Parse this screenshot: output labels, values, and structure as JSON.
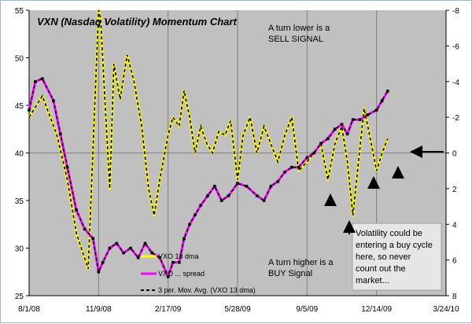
{
  "chart_data": {
    "type": "line",
    "title": "VXN (Nasdaq Volatility) Momentum Chart",
    "x_tick_labels": [
      "8/1/08",
      "11/9/08",
      "2/17/09",
      "5/28/09",
      "9/5/09",
      "12/14/09",
      "3/24/10"
    ],
    "x_range": [
      "2008-08-01",
      "2010-03-24"
    ],
    "left_axis": {
      "range": [
        25,
        55
      ],
      "ticks": [
        25,
        30,
        35,
        40,
        45,
        50,
        55
      ]
    },
    "right_axis": {
      "range": [
        8,
        -8
      ],
      "inverted": true,
      "ticks": [
        8,
        6,
        4,
        2,
        0,
        -2,
        -4,
        -6,
        -8
      ]
    },
    "grid": "vertical lines only",
    "legend": {
      "position": "lower-middle",
      "entries": [
        {
          "label": "VXO 13 dma",
          "color": "#ffff00"
        },
        {
          "label": "VXO ... spread",
          "color": "#ff00ff"
        },
        {
          "label": "3 per. Mov. Avg. (VXO 13 dma)",
          "color": "#000000",
          "style": "dashed"
        }
      ]
    },
    "annotations": {
      "sell_signal": [
        "A turn lower is a",
        "SELL SIGNAL"
      ],
      "buy_signal": [
        "A turn higher is a",
        "BUY Signal"
      ],
      "note_box": [
        "Volatility could be",
        "entering a buy cycle",
        "here, so never",
        "count out the",
        "market..."
      ]
    },
    "series": [
      {
        "name": "3 per. Mov. Avg. (VXO 13 dma)",
        "axis": "right",
        "color": "#ffff00",
        "overlay": "black dashed",
        "x": [
          "2008-08-01",
          "2008-08-20",
          "2008-09-10",
          "2008-09-25",
          "2008-10-08",
          "2008-10-25",
          "2008-11-09",
          "2008-11-12",
          "2008-11-18",
          "2008-11-25",
          "2008-12-01",
          "2008-12-10",
          "2008-12-20",
          "2008-12-30",
          "2009-01-10",
          "2009-01-20",
          "2009-01-28",
          "2009-02-05",
          "2009-02-17",
          "2009-02-24",
          "2009-03-05",
          "2009-03-12",
          "2009-03-20",
          "2009-03-28",
          "2009-04-05",
          "2009-04-14",
          "2009-04-22",
          "2009-05-01",
          "2009-05-10",
          "2009-05-18",
          "2009-05-28",
          "2009-06-05",
          "2009-06-15",
          "2009-06-25",
          "2009-07-05",
          "2009-07-15",
          "2009-07-25",
          "2009-08-04",
          "2009-08-14",
          "2009-08-24",
          "2009-09-05",
          "2009-09-15",
          "2009-09-25",
          "2009-10-05",
          "2009-10-15",
          "2009-10-25",
          "2009-11-02",
          "2009-11-10",
          "2009-11-18",
          "2009-11-26",
          "2009-12-04",
          "2009-12-14",
          "2009-12-22",
          "2009-12-30"
        ],
        "y": [
          -2.0,
          -3.2,
          -1.0,
          1.5,
          4.5,
          6.5,
          -8.0,
          -7.5,
          -3.0,
          2.0,
          -5.0,
          -3.0,
          -5.5,
          -4.0,
          -1.5,
          2.0,
          3.5,
          1.5,
          -1.0,
          -2.0,
          -1.5,
          -3.5,
          -2.0,
          0.0,
          -1.5,
          -0.5,
          0.0,
          -1.2,
          -1.0,
          -1.8,
          1.5,
          -1.0,
          -2.0,
          0.0,
          -1.5,
          -0.5,
          0.5,
          -1.0,
          -2.0,
          1.0,
          0.5,
          0.0,
          -0.5,
          1.5,
          -0.5,
          -1.5,
          0.5,
          3.5,
          0.5,
          -2.5,
          -1.0,
          1.0,
          0.0,
          -0.8
        ]
      },
      {
        "name": "VXO ... spread",
        "axis": "left",
        "color": "#ff00ff",
        "overlay": "black dashed",
        "x": [
          "2008-08-01",
          "2008-08-10",
          "2008-08-20",
          "2008-09-05",
          "2008-09-15",
          "2008-09-25",
          "2008-10-08",
          "2008-10-20",
          "2008-11-01",
          "2008-11-09",
          "2008-11-15",
          "2008-11-25",
          "2008-12-05",
          "2008-12-15",
          "2008-12-25",
          "2009-01-05",
          "2009-01-15",
          "2009-01-25",
          "2009-02-05",
          "2009-02-17",
          "2009-02-24",
          "2009-03-05",
          "2009-03-12",
          "2009-03-20",
          "2009-03-28",
          "2009-04-05",
          "2009-04-15",
          "2009-04-25",
          "2009-05-05",
          "2009-05-15",
          "2009-05-28",
          "2009-06-10",
          "2009-06-25",
          "2009-07-05",
          "2009-07-15",
          "2009-07-25",
          "2009-08-04",
          "2009-08-14",
          "2009-08-24",
          "2009-09-05",
          "2009-09-15",
          "2009-09-25",
          "2009-10-05",
          "2009-10-15",
          "2009-10-25",
          "2009-11-02",
          "2009-11-10",
          "2009-11-20",
          "2009-12-01",
          "2009-12-14",
          "2009-12-22",
          "2009-12-30"
        ],
        "y": [
          44.5,
          47.5,
          47.8,
          45.5,
          42.0,
          38.5,
          34.0,
          32.0,
          31.0,
          27.5,
          28.5,
          30.0,
          30.5,
          29.5,
          30.0,
          29.0,
          30.5,
          29.5,
          29.0,
          27.0,
          28.5,
          28.5,
          31.0,
          32.5,
          33.5,
          34.5,
          35.5,
          36.5,
          35.0,
          35.5,
          36.8,
          36.5,
          35.5,
          35.0,
          36.5,
          37.0,
          38.0,
          38.5,
          38.5,
          39.5,
          40.0,
          41.0,
          41.5,
          42.5,
          43.0,
          42.0,
          43.5,
          43.5,
          44.0,
          44.5,
          45.5,
          46.5
        ]
      }
    ]
  }
}
